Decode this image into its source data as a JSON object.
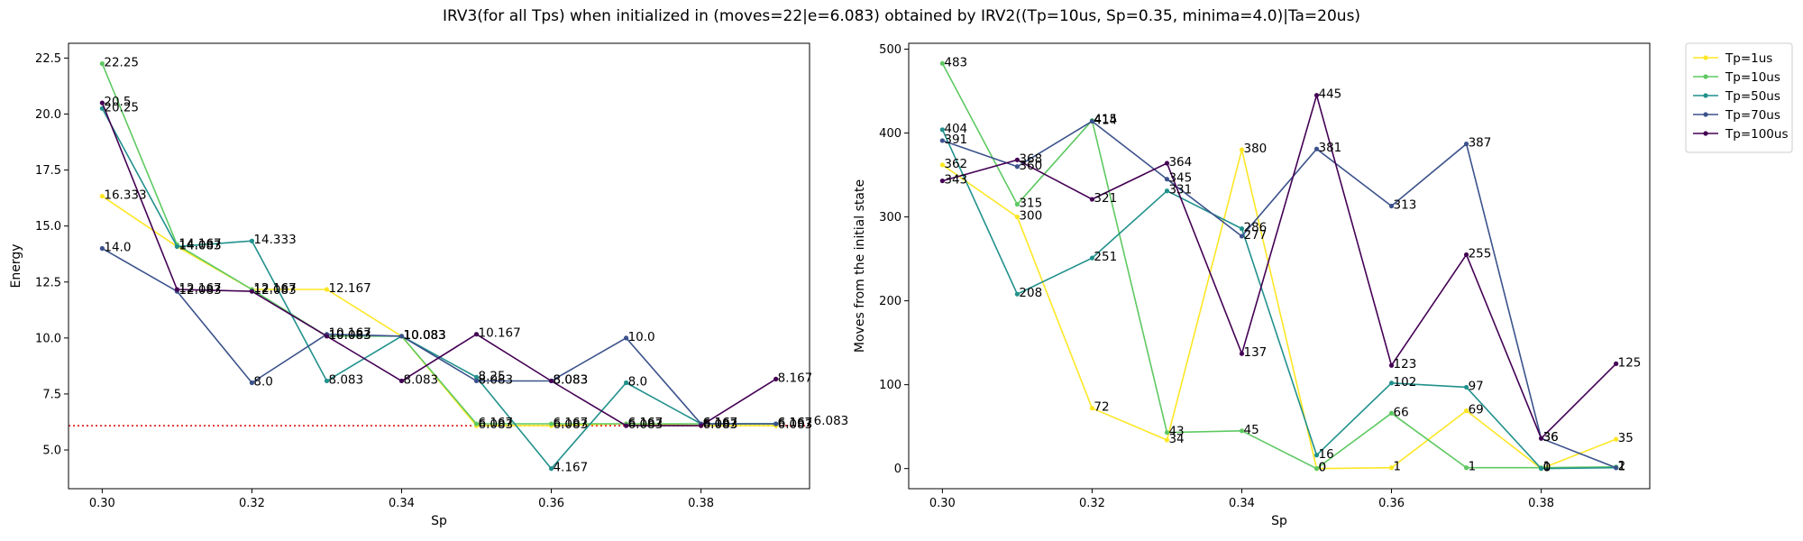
{
  "figure_title": "IRV3(for all Tps) when initialized in (moves=22|e=6.083) obtained by IRV2((Tp=10us, Sp=0.35, minima=4.0)|Ta=20us)",
  "colors": {
    "Tp=1us": "#fde725",
    "Tp=10us": "#5ec962",
    "Tp=50us": "#21918c",
    "Tp=70us": "#3b528b",
    "Tp=100us": "#440154",
    "reference_line": "#e00000"
  },
  "chart_data": [
    {
      "type": "line",
      "xlabel": "Sp",
      "ylabel": "Energy",
      "x": [
        0.3,
        0.31,
        0.32,
        0.33,
        0.34,
        0.35,
        0.36,
        0.37,
        0.38,
        0.39
      ],
      "xlim": [
        0.2955,
        0.3945
      ],
      "ylim": [
        3.27,
        23.16
      ],
      "xticks": [
        0.3,
        0.32,
        0.34,
        0.36,
        0.38
      ],
      "xtick_labels": [
        "0.30",
        "0.32",
        "0.34",
        "0.36",
        "0.38"
      ],
      "yticks": [
        5.0,
        7.5,
        10.0,
        12.5,
        15.0,
        17.5,
        20.0,
        22.5
      ],
      "ytick_labels": [
        "5.0",
        "7.5",
        "10.0",
        "12.5",
        "15.0",
        "17.5",
        "20.0",
        "22.5"
      ],
      "grid": false,
      "reference_line": {
        "y": 6.083,
        "style": "dotted"
      },
      "series": [
        {
          "name": "Tp=1us",
          "values": [
            16.333,
            14.083,
            12.167,
            12.167,
            10.083,
            6.083,
            6.083,
            6.167,
            6.083,
            6.083
          ],
          "labels": [
            "16.333",
            "14.083",
            "12.167",
            "12.167",
            "10.083",
            "6.083",
            "6.083",
            "6.167",
            "6.083",
            "6.083"
          ]
        },
        {
          "name": "Tp=10us",
          "values": [
            22.25,
            14.167,
            12.167,
            10.083,
            10.083,
            6.167,
            6.167,
            6.167,
            6.167,
            6.167
          ],
          "labels": [
            "22.25",
            "14.167",
            "12.167",
            "10.083",
            "10.083",
            "6.167",
            "6.167",
            "6.167",
            "6.167",
            "6.167"
          ]
        },
        {
          "name": "Tp=50us",
          "values": [
            20.25,
            14.083,
            14.333,
            8.083,
            10.083,
            8.25,
            4.167,
            8.0,
            6.167,
            6.167
          ],
          "labels": [
            "20.25",
            "14.083",
            "14.333",
            "8.083",
            "10.083",
            "8.25",
            "4.167",
            "8.0",
            "6.167",
            "6.167"
          ]
        },
        {
          "name": "Tp=70us",
          "values": [
            14.0,
            12.083,
            8.0,
            10.167,
            10.083,
            8.083,
            8.083,
            10.0,
            6.167,
            6.167
          ],
          "labels": [
            "14.0",
            "12.083",
            "8.0",
            "10.167",
            "10.083",
            "8.083",
            "8.083",
            "10.0",
            "6.167",
            "6.167"
          ]
        },
        {
          "name": "Tp=100us",
          "values": [
            20.5,
            12.167,
            12.083,
            10.083,
            8.083,
            10.167,
            8.083,
            6.083,
            6.083,
            8.167
          ],
          "labels": [
            "20.5",
            "12.167",
            "12.083",
            "10.083",
            "8.083",
            "10.167",
            "8.083",
            "6.083",
            "6.083",
            "8.167"
          ]
        }
      ],
      "extra_annotation": "6.083"
    },
    {
      "type": "line",
      "xlabel": "Sp",
      "ylabel": "Moves from the initial state",
      "x": [
        0.3,
        0.31,
        0.32,
        0.33,
        0.34,
        0.35,
        0.36,
        0.37,
        0.38,
        0.39
      ],
      "xlim": [
        0.2955,
        0.3945
      ],
      "ylim": [
        -24,
        507
      ],
      "xticks": [
        0.3,
        0.32,
        0.34,
        0.36,
        0.38
      ],
      "xtick_labels": [
        "0.30",
        "0.32",
        "0.34",
        "0.36",
        "0.38"
      ],
      "yticks": [
        0,
        100,
        200,
        300,
        400,
        500
      ],
      "ytick_labels": [
        "0",
        "100",
        "200",
        "300",
        "400",
        "500"
      ],
      "grid": false,
      "legend_position": "outside-top-right",
      "series": [
        {
          "name": "Tp=1us",
          "values": [
            362,
            300,
            72,
            34,
            380,
            0,
            1,
            69,
            0,
            35
          ],
          "labels": [
            "362",
            "300",
            "72",
            "34",
            "380",
            "0",
            "1",
            "69",
            "0",
            "35"
          ]
        },
        {
          "name": "Tp=10us",
          "values": [
            483,
            315,
            415,
            43,
            45,
            0,
            66,
            1,
            1,
            2
          ],
          "labels": [
            "483",
            "315",
            "415",
            "43",
            "45",
            "0",
            "66",
            "1",
            "1",
            "2"
          ]
        },
        {
          "name": "Tp=50us",
          "values": [
            404,
            208,
            251,
            331,
            286,
            16,
            102,
            97,
            0,
            1
          ],
          "labels": [
            "404",
            "208",
            "251",
            "331",
            "286",
            "16",
            "102",
            "97",
            "0",
            "1"
          ]
        },
        {
          "name": "Tp=70us",
          "values": [
            391,
            360,
            414,
            345,
            277,
            381,
            313,
            387,
            36,
            1
          ],
          "labels": [
            "391",
            "360",
            "414",
            "345",
            "277",
            "381",
            "313",
            "387",
            "36",
            "1"
          ]
        },
        {
          "name": "Tp=100us",
          "values": [
            343,
            368,
            321,
            364,
            137,
            445,
            123,
            255,
            36,
            125
          ],
          "labels": [
            "343",
            "368",
            "321",
            "364",
            "137",
            "445",
            "123",
            "255",
            "36",
            "125"
          ]
        }
      ]
    }
  ]
}
